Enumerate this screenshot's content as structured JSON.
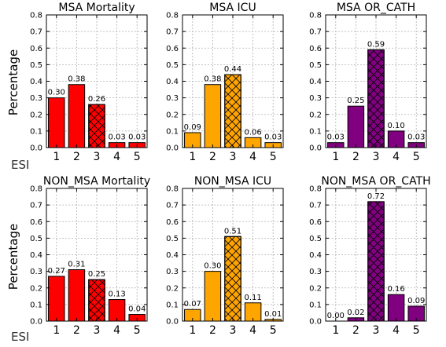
{
  "chart_data": [
    {
      "type": "bar",
      "title": "MSA Mortality",
      "color": "#ff0000",
      "categories": [
        "1",
        "2",
        "3",
        "4",
        "5"
      ],
      "values": [
        0.3,
        0.38,
        0.26,
        0.03,
        0.03
      ],
      "labels": [
        "0.30",
        "0.38",
        "0.26",
        "0.03",
        "0.03"
      ],
      "hatched": [
        false,
        false,
        true,
        false,
        false
      ],
      "ylim": [
        0,
        0.8
      ],
      "yticks": [
        "0.0",
        "0.1",
        "0.2",
        "0.3",
        "0.4",
        "0.5",
        "0.6",
        "0.7",
        "0.8"
      ],
      "ylabel": "Percentage",
      "xlabel": "ESI",
      "grid": true
    },
    {
      "type": "bar",
      "title": "MSA ICU",
      "color": "#ffa500",
      "categories": [
        "1",
        "2",
        "3",
        "4",
        "5"
      ],
      "values": [
        0.09,
        0.38,
        0.44,
        0.06,
        0.03
      ],
      "labels": [
        "0.09",
        "0.38",
        "0.44",
        "0.06",
        "0.03"
      ],
      "hatched": [
        false,
        false,
        true,
        false,
        false
      ],
      "ylim": [
        0,
        0.8
      ],
      "yticks": [
        "0.0",
        "0.1",
        "0.2",
        "0.3",
        "0.4",
        "0.5",
        "0.6",
        "0.7",
        "0.8"
      ],
      "ylabel": "",
      "xlabel": "",
      "grid": true
    },
    {
      "type": "bar",
      "title": "MSA OR_CATH",
      "color": "#800080",
      "categories": [
        "1",
        "2",
        "3",
        "4",
        "5"
      ],
      "values": [
        0.03,
        0.25,
        0.59,
        0.1,
        0.03
      ],
      "labels": [
        "0.03",
        "0.25",
        "0.59",
        "0.10",
        "0.03"
      ],
      "hatched": [
        false,
        false,
        true,
        false,
        false
      ],
      "ylim": [
        0,
        0.8
      ],
      "yticks": [
        "0.0",
        "0.1",
        "0.2",
        "0.3",
        "0.4",
        "0.5",
        "0.6",
        "0.7",
        "0.8"
      ],
      "ylabel": "",
      "xlabel": "",
      "grid": true
    },
    {
      "type": "bar",
      "title": "NON_MSA Mortality",
      "color": "#ff0000",
      "categories": [
        "1",
        "2",
        "3",
        "4",
        "5"
      ],
      "values": [
        0.27,
        0.31,
        0.25,
        0.13,
        0.04
      ],
      "labels": [
        "0.27",
        "0.31",
        "0.25",
        "0.13",
        "0.04"
      ],
      "hatched": [
        false,
        false,
        true,
        false,
        false
      ],
      "ylim": [
        0,
        0.8
      ],
      "yticks": [
        "0.0",
        "0.1",
        "0.2",
        "0.3",
        "0.4",
        "0.5",
        "0.6",
        "0.7",
        "0.8"
      ],
      "ylabel": "Percentage",
      "xlabel": "ESI",
      "grid": true
    },
    {
      "type": "bar",
      "title": "NON_MSA ICU",
      "color": "#ffa500",
      "categories": [
        "1",
        "2",
        "3",
        "4",
        "5"
      ],
      "values": [
        0.07,
        0.3,
        0.51,
        0.11,
        0.01
      ],
      "labels": [
        "0.07",
        "0.30",
        "0.51",
        "0.11",
        "0.01"
      ],
      "hatched": [
        false,
        false,
        true,
        false,
        false
      ],
      "ylim": [
        0,
        0.8
      ],
      "yticks": [
        "0.0",
        "0.1",
        "0.2",
        "0.3",
        "0.4",
        "0.5",
        "0.6",
        "0.7",
        "0.8"
      ],
      "ylabel": "",
      "xlabel": "",
      "grid": true
    },
    {
      "type": "bar",
      "title": "NON_MSA OR_CATH",
      "color": "#800080",
      "categories": [
        "1",
        "2",
        "3",
        "4",
        "5"
      ],
      "values": [
        0.0,
        0.02,
        0.72,
        0.16,
        0.09
      ],
      "labels": [
        "0.00",
        "0.02",
        "0.72",
        "0.16",
        "0.09"
      ],
      "hatched": [
        false,
        false,
        true,
        false,
        false
      ],
      "ylim": [
        0,
        0.8
      ],
      "yticks": [
        "0.0",
        "0.1",
        "0.2",
        "0.3",
        "0.4",
        "0.5",
        "0.6",
        "0.7",
        "0.8"
      ],
      "ylabel": "",
      "xlabel": "",
      "grid": true
    }
  ]
}
